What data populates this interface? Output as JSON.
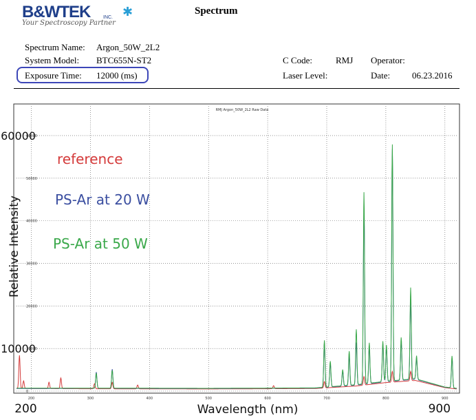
{
  "header": {
    "logo_text": "B&WTEK",
    "logo_inc": "INC.",
    "tagline": "Your Spectroscopy Partner",
    "title": "Spectrum"
  },
  "meta": {
    "spectrum_name_label": "Spectrum Name:",
    "spectrum_name_value": "Argon_50W_2L2",
    "system_model_label": "System Model:",
    "system_model_value": "BTC655N-ST2",
    "exposure_label": "Exposure Time:",
    "exposure_value": "12000 (ms)",
    "ccode_label": "C Code:",
    "ccode_value": "RMJ",
    "operator_label": "Operator:",
    "operator_value": "",
    "laser_label": "Laser Level:",
    "laser_value": "",
    "date_label": "Date:",
    "date_value": "06.23.2016"
  },
  "colors": {
    "reference": "#d43a3a",
    "ps20": "#3a4ea0",
    "ps50": "#3aa84a",
    "highlight": "#3c46b8"
  },
  "chart_data": {
    "type": "line",
    "title": "RMJ Argon_50W_2L2 Raw Data",
    "xlabel": "Wavelength (nm)",
    "ylabel": "Relative Intensity",
    "xlim": [
      175,
      920
    ],
    "ylim": [
      0,
      65000
    ],
    "x_ticks": [
      200,
      300,
      400,
      500,
      600,
      700,
      800,
      900
    ],
    "y_ticks": [
      0,
      10000,
      20000,
      30000,
      40000,
      50000,
      60000
    ],
    "y_annotations": [
      {
        "label": "60000",
        "value": 60000
      },
      {
        "label": "10000",
        "value": 10000
      }
    ],
    "x_annotations": [
      {
        "label": "200",
        "value": 200
      },
      {
        "label": "900",
        "value": 900
      }
    ],
    "grid": true,
    "series": [
      {
        "name": "reference",
        "color": "#d43a3a",
        "baseline": [
          [
            175,
            600
          ],
          [
            300,
            550
          ],
          [
            500,
            500
          ],
          [
            680,
            600
          ],
          [
            750,
            1200
          ],
          [
            800,
            2000
          ],
          [
            850,
            2500
          ],
          [
            900,
            800
          ],
          [
            920,
            500
          ]
        ],
        "peaks": [
          [
            180,
            7800
          ],
          [
            187,
            1800
          ],
          [
            230,
            1500
          ],
          [
            250,
            2500
          ],
          [
            307,
            1200
          ],
          [
            337,
            1500
          ],
          [
            380,
            900
          ],
          [
            610,
            700
          ],
          [
            696,
            1500
          ],
          [
            763,
            2000
          ],
          [
            811,
            2500
          ],
          [
            842,
            2200
          ]
        ]
      },
      {
        "name": "PS-Ar at 20 W",
        "color": "#3a4ea0",
        "baseline": [
          [
            175,
            600
          ],
          [
            300,
            650
          ],
          [
            500,
            600
          ],
          [
            680,
            700
          ],
          [
            750,
            1400
          ],
          [
            800,
            2200
          ],
          [
            850,
            2800
          ],
          [
            900,
            900
          ],
          [
            920,
            600
          ]
        ],
        "peaks": [
          [
            310,
            3800
          ],
          [
            337,
            4500
          ],
          [
            696,
            10500
          ],
          [
            706,
            5500
          ],
          [
            727,
            3500
          ],
          [
            738,
            7000
          ],
          [
            750,
            10000
          ],
          [
            763,
            41000
          ],
          [
            772,
            8500
          ],
          [
            795,
            9000
          ],
          [
            801,
            8000
          ],
          [
            811,
            54500
          ],
          [
            826,
            9000
          ],
          [
            842,
            19000
          ],
          [
            852,
            5000
          ],
          [
            912,
            7000
          ]
        ]
      },
      {
        "name": "PS-Ar at 50 W",
        "color": "#3aa84a",
        "baseline": [
          [
            175,
            700
          ],
          [
            300,
            700
          ],
          [
            500,
            650
          ],
          [
            680,
            750
          ],
          [
            750,
            1500
          ],
          [
            800,
            2300
          ],
          [
            850,
            2900
          ],
          [
            900,
            950
          ],
          [
            920,
            650
          ]
        ],
        "peaks": [
          [
            310,
            3500
          ],
          [
            337,
            4200
          ],
          [
            696,
            11000
          ],
          [
            706,
            6000
          ],
          [
            727,
            3800
          ],
          [
            738,
            8000
          ],
          [
            750,
            13000
          ],
          [
            763,
            45000
          ],
          [
            772,
            9500
          ],
          [
            795,
            9500
          ],
          [
            801,
            8500
          ],
          [
            811,
            55500
          ],
          [
            826,
            10000
          ],
          [
            842,
            21500
          ],
          [
            852,
            5500
          ],
          [
            912,
            7500
          ]
        ]
      }
    ],
    "legend_labels": [
      "reference",
      "PS-Ar at 20 W",
      "PS-Ar at 50 W"
    ]
  }
}
